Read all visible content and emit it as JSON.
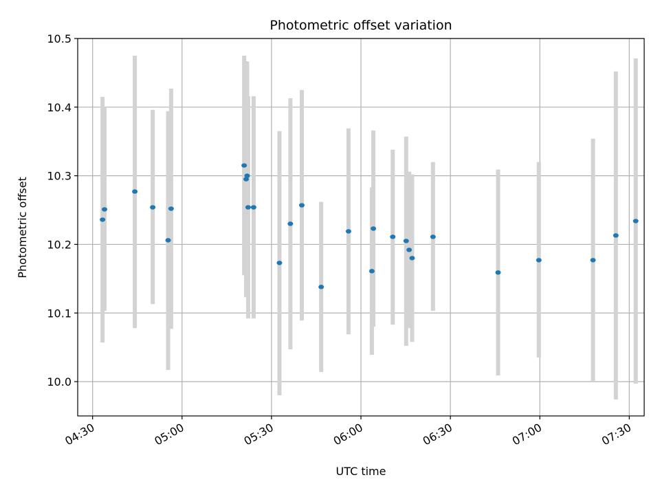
{
  "chart_data": {
    "type": "scatter",
    "title": "Photometric offset variation",
    "xlabel": "UTC time",
    "ylabel": "Photometric offset",
    "xlim": [
      "04:25",
      "07:35"
    ],
    "ylim": [
      9.95,
      10.5
    ],
    "x_ticks": [
      "04:30",
      "05:00",
      "05:30",
      "06:00",
      "06:30",
      "07:00",
      "07:30"
    ],
    "y_ticks": [
      "10.0",
      "10.1",
      "10.2",
      "10.3",
      "10.4",
      "10.5"
    ],
    "grid": true,
    "colors": {
      "point": "#1f77b4",
      "errorbar": "#d3d3d3",
      "grid": "#b0b0b0"
    },
    "points": [
      {
        "x": "04:33:20",
        "y": 10.236,
        "lo": 10.057,
        "hi": 10.415
      },
      {
        "x": "04:34:00",
        "y": 10.251,
        "lo": 10.103,
        "hi": 10.4
      },
      {
        "x": "04:44:10",
        "y": 10.277,
        "lo": 10.078,
        "hi": 10.475
      },
      {
        "x": "04:50:10",
        "y": 10.254,
        "lo": 10.113,
        "hi": 10.396
      },
      {
        "x": "04:55:20",
        "y": 10.206,
        "lo": 10.017,
        "hi": 10.394
      },
      {
        "x": "04:56:20",
        "y": 10.252,
        "lo": 10.077,
        "hi": 10.427
      },
      {
        "x": "05:20:50",
        "y": 10.315,
        "lo": 10.155,
        "hi": 10.475
      },
      {
        "x": "05:21:30",
        "y": 10.295,
        "lo": 10.123,
        "hi": 10.467
      },
      {
        "x": "05:21:50",
        "y": 10.3,
        "lo": 10.134,
        "hi": 10.466
      },
      {
        "x": "05:22:10",
        "y": 10.254,
        "lo": 10.092,
        "hi": 10.416
      },
      {
        "x": "05:24:00",
        "y": 10.254,
        "lo": 10.092,
        "hi": 10.416
      },
      {
        "x": "05:32:40",
        "y": 10.173,
        "lo": 9.98,
        "hi": 10.365
      },
      {
        "x": "05:36:20",
        "y": 10.23,
        "lo": 10.047,
        "hi": 10.413
      },
      {
        "x": "05:40:10",
        "y": 10.257,
        "lo": 10.089,
        "hi": 10.425
      },
      {
        "x": "05:46:40",
        "y": 10.138,
        "lo": 10.014,
        "hi": 10.262
      },
      {
        "x": "05:55:50",
        "y": 10.219,
        "lo": 10.069,
        "hi": 10.369
      },
      {
        "x": "06:03:40",
        "y": 10.161,
        "lo": 10.039,
        "hi": 10.283
      },
      {
        "x": "06:04:10",
        "y": 10.223,
        "lo": 10.08,
        "hi": 10.366
      },
      {
        "x": "06:10:40",
        "y": 10.211,
        "lo": 10.083,
        "hi": 10.338
      },
      {
        "x": "06:15:10",
        "y": 10.205,
        "lo": 10.052,
        "hi": 10.357
      },
      {
        "x": "06:16:10",
        "y": 10.192,
        "lo": 10.078,
        "hi": 10.306
      },
      {
        "x": "06:17:10",
        "y": 10.18,
        "lo": 10.058,
        "hi": 10.302
      },
      {
        "x": "06:24:10",
        "y": 10.211,
        "lo": 10.103,
        "hi": 10.32
      },
      {
        "x": "06:46:00",
        "y": 10.159,
        "lo": 10.009,
        "hi": 10.309
      },
      {
        "x": "06:59:40",
        "y": 10.177,
        "lo": 10.035,
        "hi": 10.32
      },
      {
        "x": "07:17:50",
        "y": 10.177,
        "lo": 10.0,
        "hi": 10.354
      },
      {
        "x": "07:25:30",
        "y": 10.213,
        "lo": 9.974,
        "hi": 10.452
      },
      {
        "x": "07:32:10",
        "y": 10.234,
        "lo": 9.997,
        "hi": 10.471
      }
    ]
  }
}
